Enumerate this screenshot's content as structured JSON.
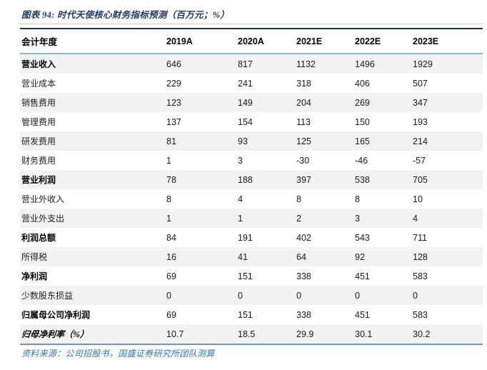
{
  "figure": {
    "title": "图表 94: 时代天使核心财务指标预测（百万元；%）",
    "source": "资料来源：公司招股书，国盛证券研究所团队测算"
  },
  "table": {
    "header": [
      "会计年度",
      "2019A",
      "2020A",
      "2021E",
      "2022E",
      "2023E"
    ],
    "rows": [
      {
        "label": "营业收入",
        "values": [
          "646",
          "817",
          "1132",
          "1496",
          "1929"
        ],
        "bold": true,
        "italic": false
      },
      {
        "label": "营业成本",
        "values": [
          "229",
          "241",
          "318",
          "406",
          "507"
        ],
        "bold": false,
        "italic": false
      },
      {
        "label": "销售费用",
        "values": [
          "123",
          "149",
          "204",
          "269",
          "347"
        ],
        "bold": false,
        "italic": false
      },
      {
        "label": "管理费用",
        "values": [
          "137",
          "154",
          "113",
          "150",
          "193"
        ],
        "bold": false,
        "italic": false
      },
      {
        "label": "研发费用",
        "values": [
          "81",
          "93",
          "125",
          "165",
          "214"
        ],
        "bold": false,
        "italic": false
      },
      {
        "label": "财务费用",
        "values": [
          "1",
          "3",
          "-30",
          "-46",
          "-57"
        ],
        "bold": false,
        "italic": false
      },
      {
        "label": "营业利润",
        "values": [
          "78",
          "188",
          "397",
          "538",
          "705"
        ],
        "bold": true,
        "italic": false
      },
      {
        "label": "营业外收入",
        "values": [
          "8",
          "4",
          "8",
          "8",
          "10"
        ],
        "bold": false,
        "italic": false
      },
      {
        "label": "营业外支出",
        "values": [
          "1",
          "1",
          "2",
          "3",
          "4"
        ],
        "bold": false,
        "italic": false
      },
      {
        "label": "利润总额",
        "values": [
          "84",
          "191",
          "402",
          "543",
          "711"
        ],
        "bold": true,
        "italic": false
      },
      {
        "label": "所得税",
        "values": [
          "16",
          "41",
          "64",
          "92",
          "128"
        ],
        "bold": false,
        "italic": false
      },
      {
        "label": "净利润",
        "values": [
          "69",
          "151",
          "338",
          "451",
          "583"
        ],
        "bold": true,
        "italic": false
      },
      {
        "label": "少数股东损益",
        "values": [
          "0",
          "0",
          "0",
          "0",
          "0"
        ],
        "bold": false,
        "italic": false
      },
      {
        "label": "归属母公司净利润",
        "values": [
          "69",
          "151",
          "338",
          "451",
          "583"
        ],
        "bold": true,
        "italic": false
      },
      {
        "label": "归母净利率（%）",
        "values": [
          "10.7",
          "18.5",
          "29.9",
          "30.1",
          "30.2"
        ],
        "bold": true,
        "italic": true
      }
    ]
  },
  "colors": {
    "title_blue": "#1F3864",
    "source_blue": "#2E74B5",
    "stripe_gray": "#F2F2F2",
    "top_rule_navy": "#17365D",
    "header_rule_blue": "#95B3D7",
    "bottom_rule_blue": "#6F94C4",
    "title_underline_blue": "#B8CCE4"
  }
}
